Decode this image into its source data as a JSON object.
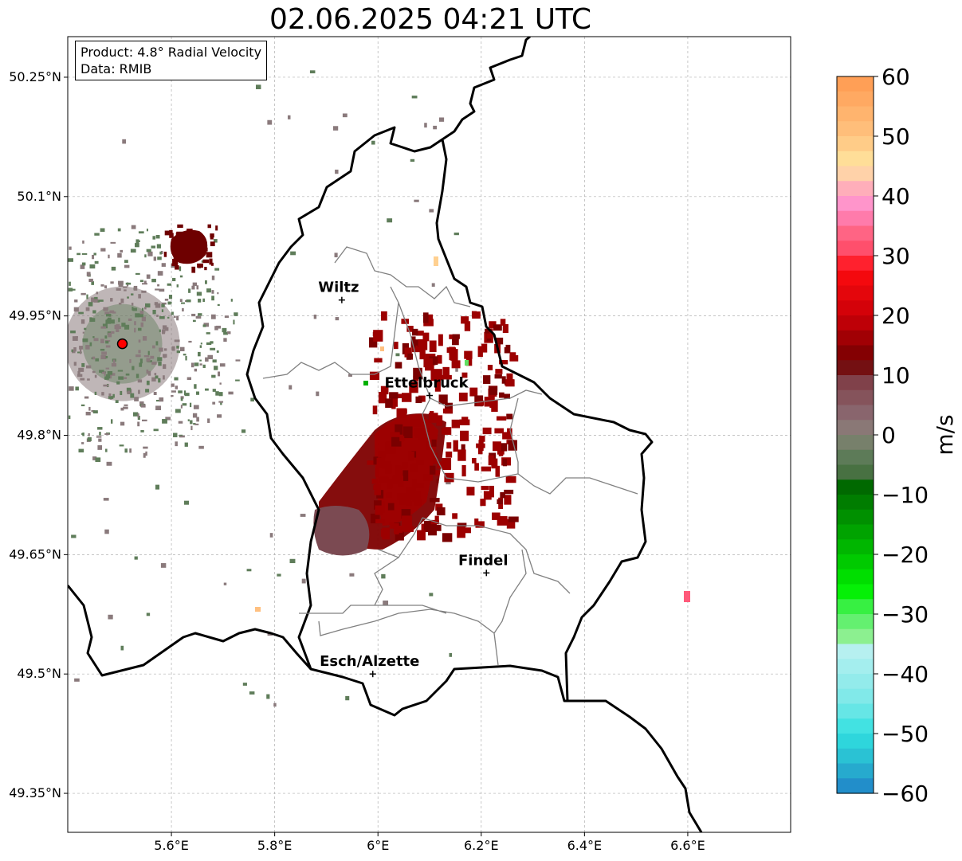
{
  "title": "02.06.2025 04:21 UTC",
  "info": {
    "product": "Product: 4.8° Radial Velocity",
    "data_source": "Data: RMIB"
  },
  "map": {
    "lon_range": [
      5.4,
      6.8
    ],
    "lat_range": [
      49.3,
      50.3
    ],
    "lon_ticks": [
      5.6,
      5.8,
      6.0,
      6.2,
      6.4,
      6.6
    ],
    "lon_tick_labels": [
      "5.6°E",
      "5.8°E",
      "6°E",
      "6.2°E",
      "6.4°E",
      "6.6°E"
    ],
    "lat_ticks": [
      50.25,
      50.1,
      49.95,
      49.8,
      49.65,
      49.5,
      49.35
    ],
    "lat_tick_labels": [
      "50.25°N",
      "50.1°N",
      "49.95°N",
      "49.8°N",
      "49.65°N",
      "49.5°N",
      "49.35°N"
    ],
    "grid": true,
    "radar_site": {
      "lon": 5.505,
      "lat": 49.915
    },
    "cities": [
      {
        "name": "Wiltz",
        "lon": 5.93,
        "lat": 49.97
      },
      {
        "name": "Ettelbruck",
        "lon": 6.1,
        "lat": 49.85
      },
      {
        "name": "Findel",
        "lon": 6.21,
        "lat": 49.627
      },
      {
        "name": "Esch/Alzette",
        "lon": 5.99,
        "lat": 49.5
      }
    ]
  },
  "colorbar": {
    "label": "m/s",
    "min": -60,
    "max": 60,
    "ticks": [
      60,
      50,
      40,
      30,
      20,
      10,
      0,
      -10,
      -20,
      -30,
      -40,
      -50,
      -60
    ],
    "tick_labels": [
      "60",
      "50",
      "40",
      "30",
      "20",
      "10",
      "0",
      "−10",
      "−20",
      "−30",
      "−40",
      "−50",
      "−60"
    ],
    "stops": [
      {
        "value": 60,
        "color": "#ff9a50"
      },
      {
        "value": 50,
        "color": "#ffc380"
      },
      {
        "value": 45,
        "color": "#ffe7a0"
      },
      {
        "value": 42,
        "color": "#ffb5b5"
      },
      {
        "value": 38,
        "color": "#ff8ed0"
      },
      {
        "value": 35,
        "color": "#ff6e90"
      },
      {
        "value": 30,
        "color": "#ff4460"
      },
      {
        "value": 28,
        "color": "#ff0c10"
      },
      {
        "value": 20,
        "color": "#cc0008"
      },
      {
        "value": 12,
        "color": "#700000"
      },
      {
        "value": 9,
        "color": "#803f48"
      },
      {
        "value": 3,
        "color": "#8a6a72"
      },
      {
        "value": 0,
        "color": "#8a8278"
      },
      {
        "value": -3,
        "color": "#5c7c58"
      },
      {
        "value": -6,
        "color": "#607858"
      },
      {
        "value": -7,
        "color": "#005c00"
      },
      {
        "value": -20,
        "color": "#00c000"
      },
      {
        "value": -26,
        "color": "#00f000"
      },
      {
        "value": -30,
        "color": "#50f060"
      },
      {
        "value": -35,
        "color": "#a0f0a0"
      },
      {
        "value": -36,
        "color": "#b8f0f0"
      },
      {
        "value": -45,
        "color": "#78e8e8"
      },
      {
        "value": -50,
        "color": "#30e0e0"
      },
      {
        "value": -55,
        "color": "#28b8d0"
      },
      {
        "value": -60,
        "color": "#2080c8"
      }
    ]
  },
  "colors": {
    "approaching": "#5f7d5a",
    "receding_strong": "#8b0000",
    "receding_weak": "#7b4a52",
    "border": "#000000",
    "canton_border": "#808080"
  }
}
